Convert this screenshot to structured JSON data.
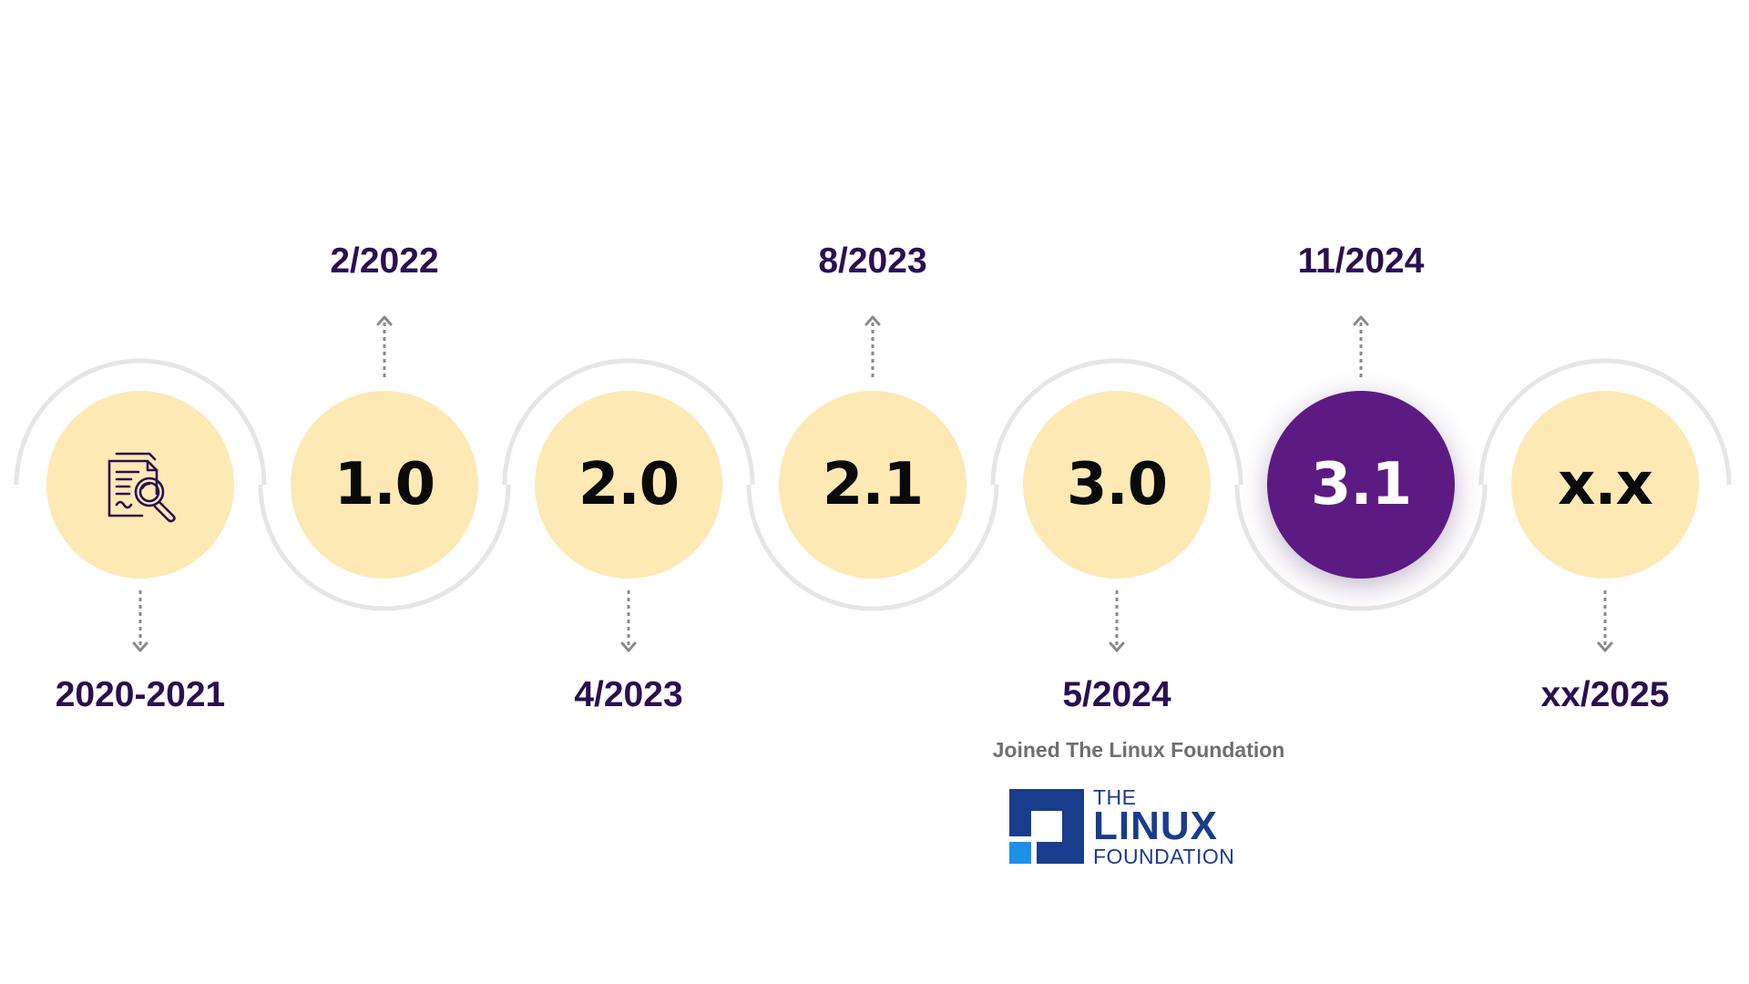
{
  "colors": {
    "circle_fill": "#fde9b4",
    "active_fill": "#5c1b82",
    "date_text": "#2a0f52",
    "arc": "#e6e6e6",
    "arrow": "#8a8a8a",
    "note_text": "#6f6f6f",
    "logo_blue": "#1a3c8c",
    "logo_light_blue": "#1e90e8"
  },
  "milestones": [
    {
      "label": "",
      "icon": "document-search-icon",
      "date": "2020-2021",
      "date_position": "below",
      "active": false
    },
    {
      "label": "1.0",
      "date": "2/2022",
      "date_position": "above",
      "active": false
    },
    {
      "label": "2.0",
      "date": "4/2023",
      "date_position": "below",
      "active": false
    },
    {
      "label": "2.1",
      "date": "8/2023",
      "date_position": "above",
      "active": false
    },
    {
      "label": "3.0",
      "date": "5/2024",
      "date_position": "below",
      "active": false
    },
    {
      "label": "3.1",
      "date": "11/2024",
      "date_position": "above",
      "active": true
    },
    {
      "label": "x.x",
      "date": "xx/2025",
      "date_position": "below",
      "active": false
    }
  ],
  "annotation": {
    "text": "Joined The Linux Foundation"
  },
  "logo": {
    "line1": "THE",
    "line2": "LINUX",
    "line3": "FOUNDATION"
  }
}
